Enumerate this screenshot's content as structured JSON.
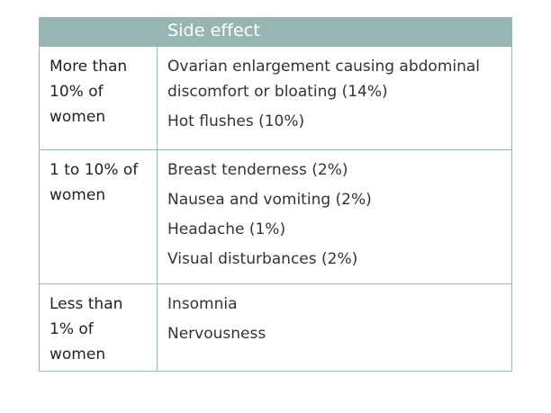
{
  "table": {
    "header": {
      "col1": "",
      "col2": "Side effect"
    },
    "rows": [
      {
        "frequency": "More than 10% of women",
        "effects": [
          "Ovarian enlargement causing abdominal discomfort or bloating (14%)",
          "Hot flushes (10%)"
        ]
      },
      {
        "frequency": "1 to 10% of women",
        "effects": [
          "Breast tenderness (2%)",
          "Nausea and vomiting (2%)",
          "Headache (1%)",
          "Visual disturbances (2%)"
        ]
      },
      {
        "frequency": "Less than 1% of women",
        "effects": [
          "Insomnia",
          "Nervousness"
        ]
      }
    ]
  }
}
